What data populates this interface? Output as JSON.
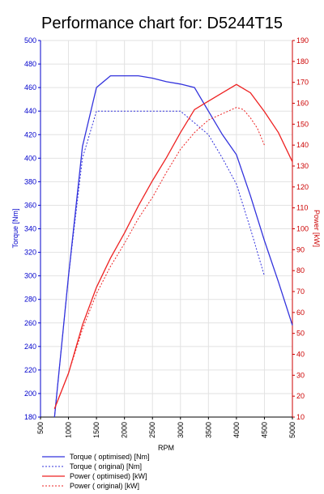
{
  "chart_data": {
    "type": "line",
    "title": "Performance chart for: D5244T15",
    "xlabel": "RPM",
    "ylabel_left": "Torque [Nm]",
    "ylabel_right": "Power [kW]",
    "xlim": [
      500,
      5000
    ],
    "xticks": [
      500,
      1000,
      1500,
      2000,
      2500,
      3000,
      3500,
      4000,
      4500,
      5000
    ],
    "ylim_left": [
      180,
      500
    ],
    "yticks_left": [
      180,
      200,
      220,
      240,
      260,
      280,
      300,
      320,
      340,
      360,
      380,
      400,
      420,
      440,
      460,
      480,
      500
    ],
    "ylim_right": [
      10,
      190
    ],
    "yticks_right": [
      10,
      20,
      30,
      40,
      50,
      60,
      70,
      80,
      90,
      100,
      110,
      120,
      130,
      140,
      150,
      160,
      170,
      180,
      190
    ],
    "grid": true,
    "legend_position": "bottom",
    "colors": {
      "torque": "#3333dd",
      "power": "#ee2222",
      "left_axis": "#0000cc",
      "right_axis": "#cc0000"
    },
    "series": [
      {
        "name": "Torque ( optimised) [Nm]",
        "axis": "left",
        "style": "solid",
        "color": "#3333dd",
        "x": [
          750,
          1000,
          1250,
          1500,
          1750,
          2000,
          2250,
          2500,
          2750,
          3000,
          3250,
          3500,
          3750,
          4000,
          4250,
          4500,
          4750,
          5000
        ],
        "y": [
          180,
          300,
          410,
          460,
          470,
          470,
          470,
          468,
          465,
          463,
          460,
          440,
          420,
          403,
          368,
          330,
          295,
          258
        ]
      },
      {
        "name": "Torque ( original) [Nm]",
        "axis": "left",
        "style": "dotted",
        "color": "#3333dd",
        "x": [
          750,
          1000,
          1250,
          1500,
          1750,
          2000,
          2250,
          2500,
          2750,
          3000,
          3250,
          3500,
          3750,
          4000,
          4250,
          4500
        ],
        "y": [
          180,
          300,
          400,
          440,
          440,
          440,
          440,
          440,
          440,
          440,
          430,
          420,
          400,
          378,
          340,
          300
        ]
      },
      {
        "name": "Power ( optimised) [kW]",
        "axis": "right",
        "style": "solid",
        "color": "#ee2222",
        "x": [
          750,
          1000,
          1250,
          1500,
          1750,
          2000,
          2250,
          2500,
          2750,
          3000,
          3250,
          3500,
          3750,
          4000,
          4250,
          4500,
          4750,
          5000
        ],
        "y": [
          14,
          31,
          54,
          72,
          86,
          98,
          111,
          123,
          134,
          146,
          157,
          161,
          165,
          169,
          165,
          156,
          146,
          132
        ]
      },
      {
        "name": "Power ( original) [kW]",
        "axis": "right",
        "style": "dotted",
        "color": "#ee2222",
        "x": [
          750,
          1000,
          1250,
          1500,
          1750,
          2000,
          2250,
          2500,
          2750,
          3000,
          3250,
          3500,
          3750,
          4000,
          4125,
          4250,
          4375,
          4500
        ],
        "y": [
          14,
          31,
          52,
          69,
          82,
          93,
          105,
          115,
          127,
          138,
          146,
          152,
          155,
          158,
          157,
          153,
          148,
          140
        ]
      }
    ]
  }
}
